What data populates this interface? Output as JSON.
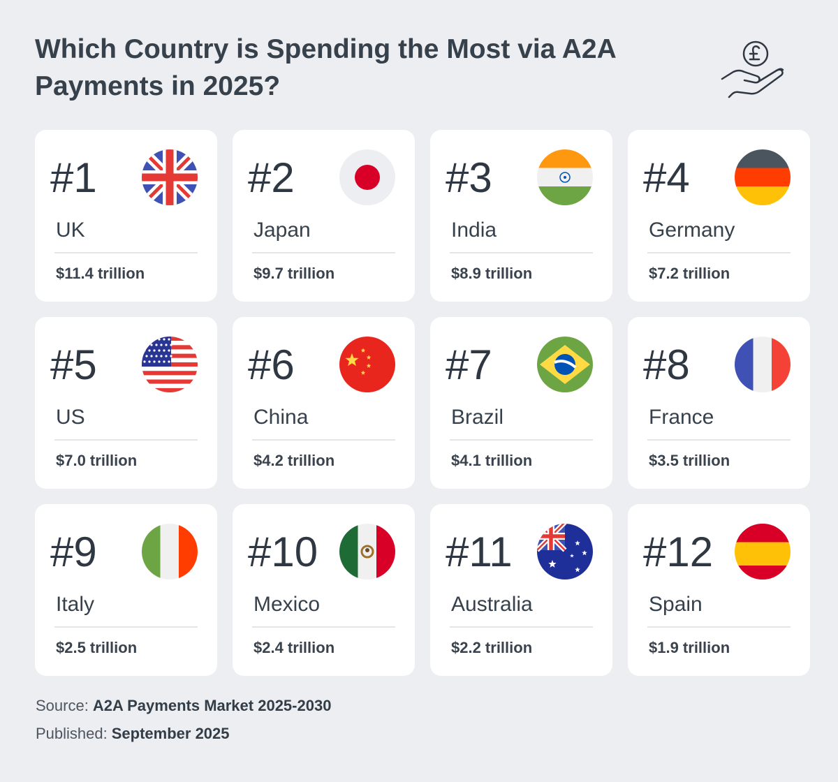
{
  "header": {
    "title": "Which Country is Spending the Most via A2A Payments in 2025?"
  },
  "cards": [
    {
      "rank": "#1",
      "country": "UK",
      "value": "$11.4 trillion"
    },
    {
      "rank": "#2",
      "country": "Japan",
      "value": "$9.7 trillion"
    },
    {
      "rank": "#3",
      "country": "India",
      "value": "$8.9 trillion"
    },
    {
      "rank": "#4",
      "country": "Germany",
      "value": "$7.2 trillion"
    },
    {
      "rank": "#5",
      "country": "US",
      "value": "$7.0 trillion"
    },
    {
      "rank": "#6",
      "country": "China",
      "value": "$4.2 trillion"
    },
    {
      "rank": "#7",
      "country": "Brazil",
      "value": "$4.1 trillion"
    },
    {
      "rank": "#8",
      "country": "France",
      "value": "$3.5 trillion"
    },
    {
      "rank": "#9",
      "country": "Italy",
      "value": "$2.5 trillion"
    },
    {
      "rank": "#10",
      "country": "Mexico",
      "value": "$2.4 trillion"
    },
    {
      "rank": "#11",
      "country": "Australia",
      "value": "$2.2 trillion"
    },
    {
      "rank": "#12",
      "country": "Spain",
      "value": "$1.9 trillion"
    }
  ],
  "footer": {
    "source": {
      "label": "Source:",
      "text": "A2A Payments Market 2025-2030"
    },
    "published": {
      "label": "Published:",
      "text": "September 2025"
    }
  }
}
